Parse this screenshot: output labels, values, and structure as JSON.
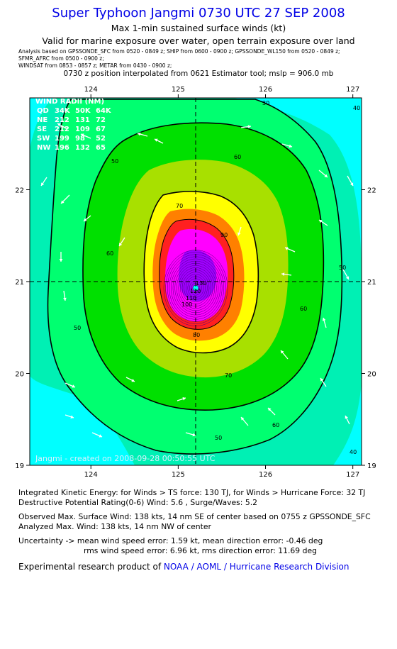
{
  "header": {
    "title": "Super Typhoon Jangmi 0730 UTC 27 SEP 2008",
    "subtitle1": "Max 1-min sustained surface winds (kt)",
    "subtitle2": "Valid for marine exposure over water, open terrain exposure over land",
    "analysis_line1": "Analysis based on  GPSSONDE_SFC  from 0520 - 0849 z;  SHIP from 0600 - 0900 z;  GPSSONDE_WL150 from 0520 - 0849 z;",
    "analysis_line2": "SFMR_AFRC from 0500 - 0900 z;",
    "analysis_line3": "WINDSAT from 0853 - 0857 z;   METAR from 0430 - 0900 z;",
    "position_line": "0730 z position interpolated from 0621 Estimator tool; mslp = 906.0 mb"
  },
  "wind_radii": {
    "header": "WIND RADII (NM)",
    "columns": [
      "QD",
      "34K",
      "50K",
      "64K"
    ],
    "rows": [
      {
        "quad": "NE",
        "r34": "212",
        "r50": "131",
        "r64": "72"
      },
      {
        "quad": "SE",
        "r34": "212",
        "r50": "109",
        "r64": "67"
      },
      {
        "quad": "SW",
        "r34": "199",
        "r50": "98",
        "r64": "52"
      },
      {
        "quad": "NW",
        "r34": "196",
        "r50": "132",
        "r64": "65"
      }
    ]
  },
  "map": {
    "footer_label": "Jangmi - created on 2008-09-28 00:50:55 UTC",
    "colors": {
      "cyan": "#00ffff",
      "aqua_green": "#00f0b4",
      "light_green": "#00ff70",
      "green": "#00e000",
      "yellow_green": "#a8e000",
      "yellow": "#ffff00",
      "orange": "#ff8000",
      "red": "#ff2020",
      "magenta": "#ff00ff",
      "purple": "#a000ff"
    }
  },
  "chart_data": {
    "type": "contour",
    "xlabel": "",
    "ylabel": "",
    "xlim": [
      123.3,
      127.1
    ],
    "ylim": [
      19.0,
      23.0
    ],
    "x_ticks": [
      "124",
      "125",
      "126",
      "127"
    ],
    "y_ticks": [
      "19",
      "20",
      "21",
      "22"
    ],
    "center": {
      "lon": 125.2,
      "lat": 20.93
    },
    "contour_labels": [
      "30",
      "40",
      "40",
      "50",
      "50",
      "50",
      "50",
      "60",
      "60",
      "60",
      "60",
      "70",
      "70",
      "80",
      "90",
      "100",
      "110",
      "120",
      "130"
    ]
  },
  "footer": {
    "ike_line": "Integrated Kinetic Energy:  for Winds > TS force: 130 TJ,  for Winds > Hurricane Force: 32 TJ",
    "dpr_line": "Destructive Potential Rating(0-6)   Wind: 5.6 , Surge/Waves: 5.2",
    "obs_max_line": "Observed Max. Surface Wind: 138 kts, 14 nm SE of center based on 0755 z GPSSONDE_SFC",
    "analyzed_max_line": "Analyzed Max. Wind: 138 kts, 14 nm NW of center",
    "uncert_line1": "Uncertainty -> mean wind speed error: 1.59 kt,   mean direction error:  -0.46 deg",
    "uncert_line2": "rms wind speed error: 6.96 kt,   rms direction error: 11.69 deg",
    "credit_prefix": "Experimental research product of ",
    "credit_link": "NOAA / AOML / Hurricane Research Division"
  }
}
